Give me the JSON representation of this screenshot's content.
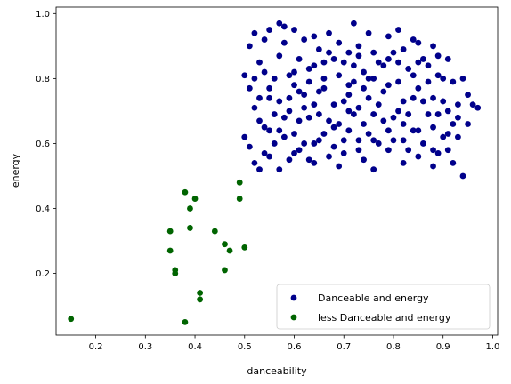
{
  "chart_data": {
    "type": "scatter",
    "xlabel": "danceability",
    "ylabel": "energy",
    "xlim": [
      0.12,
      1.01
    ],
    "ylim": [
      0.01,
      1.02
    ],
    "xticks": [
      "0.2",
      "0.3",
      "0.4",
      "0.5",
      "0.6",
      "0.7",
      "0.8",
      "0.9",
      "1.0"
    ],
    "xtick_values": [
      0.2,
      0.3,
      0.4,
      0.5,
      0.6,
      0.7,
      0.8,
      0.9,
      1.0
    ],
    "yticks": [
      "0.2",
      "0.4",
      "0.6",
      "0.8",
      "1.0"
    ],
    "ytick_values": [
      0.2,
      0.4,
      0.6,
      0.8,
      1.0
    ],
    "grid": false,
    "legend_position": "bottom-right",
    "series": [
      {
        "name": "Danceable and energy",
        "color": "#00008b",
        "points": [
          [
            0.5,
            0.81
          ],
          [
            0.51,
            0.77
          ],
          [
            0.52,
            0.71
          ],
          [
            0.53,
            0.67
          ],
          [
            0.5,
            0.62
          ],
          [
            0.51,
            0.59
          ],
          [
            0.52,
            0.54
          ],
          [
            0.53,
            0.52
          ],
          [
            0.54,
            0.57
          ],
          [
            0.55,
            0.56
          ],
          [
            0.54,
            0.65
          ],
          [
            0.55,
            0.74
          ],
          [
            0.53,
            0.85
          ],
          [
            0.54,
            0.92
          ],
          [
            0.55,
            0.95
          ],
          [
            0.57,
            0.97
          ],
          [
            0.58,
            0.91
          ],
          [
            0.56,
            0.8
          ],
          [
            0.57,
            0.73
          ],
          [
            0.58,
            0.68
          ],
          [
            0.56,
            0.6
          ],
          [
            0.57,
            0.52
          ],
          [
            0.59,
            0.55
          ],
          [
            0.6,
            0.63
          ],
          [
            0.59,
            0.7
          ],
          [
            0.6,
            0.78
          ],
          [
            0.61,
            0.86
          ],
          [
            0.6,
            0.95
          ],
          [
            0.62,
            0.92
          ],
          [
            0.63,
            0.83
          ],
          [
            0.62,
            0.75
          ],
          [
            0.63,
            0.68
          ],
          [
            0.61,
            0.58
          ],
          [
            0.64,
            0.54
          ],
          [
            0.65,
            0.61
          ],
          [
            0.64,
            0.72
          ],
          [
            0.66,
            0.8
          ],
          [
            0.65,
            0.89
          ],
          [
            0.67,
            0.94
          ],
          [
            0.68,
            0.86
          ],
          [
            0.66,
            0.77
          ],
          [
            0.67,
            0.67
          ],
          [
            0.68,
            0.59
          ],
          [
            0.69,
            0.53
          ],
          [
            0.7,
            0.57
          ],
          [
            0.71,
            0.64
          ],
          [
            0.7,
            0.73
          ],
          [
            0.72,
            0.79
          ],
          [
            0.71,
            0.88
          ],
          [
            0.72,
            0.97
          ],
          [
            0.73,
            0.9
          ],
          [
            0.74,
            0.82
          ],
          [
            0.73,
            0.71
          ],
          [
            0.75,
            0.63
          ],
          [
            0.74,
            0.55
          ],
          [
            0.76,
            0.52
          ],
          [
            0.77,
            0.6
          ],
          [
            0.76,
            0.69
          ],
          [
            0.78,
            0.76
          ],
          [
            0.77,
            0.85
          ],
          [
            0.79,
            0.93
          ],
          [
            0.8,
            0.88
          ],
          [
            0.79,
            0.78
          ],
          [
            0.81,
            0.7
          ],
          [
            0.8,
            0.61
          ],
          [
            0.82,
            0.54
          ],
          [
            0.83,
            0.58
          ],
          [
            0.82,
            0.66
          ],
          [
            0.84,
            0.74
          ],
          [
            0.83,
            0.83
          ],
          [
            0.85,
            0.91
          ],
          [
            0.86,
            0.86
          ],
          [
            0.85,
            0.77
          ],
          [
            0.87,
            0.69
          ],
          [
            0.86,
            0.6
          ],
          [
            0.88,
            0.53
          ],
          [
            0.89,
            0.57
          ],
          [
            0.88,
            0.65
          ],
          [
            0.9,
            0.73
          ],
          [
            0.89,
            0.81
          ],
          [
            0.91,
            0.86
          ],
          [
            0.92,
            0.79
          ],
          [
            0.91,
            0.7
          ],
          [
            0.93,
            0.62
          ],
          [
            0.92,
            0.54
          ],
          [
            0.94,
            0.5
          ],
          [
            0.93,
            0.68
          ],
          [
            0.95,
            0.75
          ],
          [
            0.94,
            0.8
          ],
          [
            0.96,
            0.72
          ],
          [
            0.97,
            0.71
          ],
          [
            0.95,
            0.66
          ],
          [
            0.93,
            0.72
          ],
          [
            0.88,
            0.9
          ],
          [
            0.84,
            0.92
          ],
          [
            0.81,
            0.95
          ],
          [
            0.75,
            0.94
          ],
          [
            0.69,
            0.91
          ],
          [
            0.64,
            0.93
          ],
          [
            0.58,
            0.96
          ],
          [
            0.52,
            0.94
          ],
          [
            0.51,
            0.9
          ],
          [
            0.52,
            0.8
          ],
          [
            0.53,
            0.74
          ],
          [
            0.55,
            0.64
          ],
          [
            0.56,
            0.69
          ],
          [
            0.58,
            0.62
          ],
          [
            0.59,
            0.74
          ],
          [
            0.61,
            0.67
          ],
          [
            0.62,
            0.6
          ],
          [
            0.63,
            0.55
          ],
          [
            0.65,
            0.69
          ],
          [
            0.66,
            0.63
          ],
          [
            0.68,
            0.72
          ],
          [
            0.69,
            0.66
          ],
          [
            0.71,
            0.75
          ],
          [
            0.72,
            0.69
          ],
          [
            0.73,
            0.61
          ],
          [
            0.75,
            0.74
          ],
          [
            0.76,
            0.8
          ],
          [
            0.78,
            0.67
          ],
          [
            0.79,
            0.58
          ],
          [
            0.81,
            0.79
          ],
          [
            0.82,
            0.73
          ],
          [
            0.84,
            0.64
          ],
          [
            0.85,
            0.56
          ],
          [
            0.87,
            0.79
          ],
          [
            0.88,
            0.74
          ],
          [
            0.9,
            0.62
          ],
          [
            0.91,
            0.58
          ],
          [
            0.54,
            0.82
          ],
          [
            0.57,
            0.87
          ],
          [
            0.6,
            0.82
          ],
          [
            0.63,
            0.79
          ],
          [
            0.66,
            0.85
          ],
          [
            0.69,
            0.81
          ],
          [
            0.72,
            0.84
          ],
          [
            0.75,
            0.8
          ],
          [
            0.78,
            0.84
          ],
          [
            0.81,
            0.85
          ],
          [
            0.84,
            0.81
          ],
          [
            0.87,
            0.84
          ],
          [
            0.9,
            0.8
          ],
          [
            0.55,
            0.77
          ],
          [
            0.59,
            0.81
          ],
          [
            0.62,
            0.71
          ],
          [
            0.65,
            0.76
          ],
          [
            0.68,
            0.65
          ],
          [
            0.71,
            0.7
          ],
          [
            0.74,
            0.66
          ],
          [
            0.77,
            0.72
          ],
          [
            0.8,
            0.68
          ],
          [
            0.83,
            0.69
          ],
          [
            0.86,
            0.73
          ],
          [
            0.89,
            0.69
          ],
          [
            0.92,
            0.66
          ],
          [
            0.6,
            0.57
          ],
          [
            0.64,
            0.6
          ],
          [
            0.67,
            0.56
          ],
          [
            0.7,
            0.61
          ],
          [
            0.73,
            0.58
          ],
          [
            0.76,
            0.61
          ],
          [
            0.79,
            0.64
          ],
          [
            0.82,
            0.61
          ],
          [
            0.85,
            0.64
          ],
          [
            0.88,
            0.58
          ],
          [
            0.91,
            0.63
          ],
          [
            0.57,
            0.64
          ],
          [
            0.61,
            0.76
          ],
          [
            0.64,
            0.84
          ],
          [
            0.67,
            0.88
          ],
          [
            0.7,
            0.85
          ],
          [
            0.73,
            0.87
          ],
          [
            0.76,
            0.88
          ],
          [
            0.79,
            0.86
          ],
          [
            0.82,
            0.89
          ],
          [
            0.85,
            0.85
          ],
          [
            0.89,
            0.87
          ],
          [
            0.74,
            0.77
          ],
          [
            0.71,
            0.78
          ]
        ]
      },
      {
        "name": "less Danceable and energy",
        "color": "#006400",
        "points": [
          [
            0.15,
            0.06
          ],
          [
            0.35,
            0.27
          ],
          [
            0.35,
            0.33
          ],
          [
            0.36,
            0.21
          ],
          [
            0.36,
            0.2
          ],
          [
            0.38,
            0.45
          ],
          [
            0.38,
            0.05
          ],
          [
            0.39,
            0.34
          ],
          [
            0.39,
            0.4
          ],
          [
            0.4,
            0.43
          ],
          [
            0.41,
            0.14
          ],
          [
            0.41,
            0.12
          ],
          [
            0.44,
            0.33
          ],
          [
            0.46,
            0.21
          ],
          [
            0.46,
            0.29
          ],
          [
            0.47,
            0.27
          ],
          [
            0.49,
            0.48
          ],
          [
            0.49,
            0.43
          ],
          [
            0.5,
            0.28
          ]
        ]
      }
    ]
  }
}
